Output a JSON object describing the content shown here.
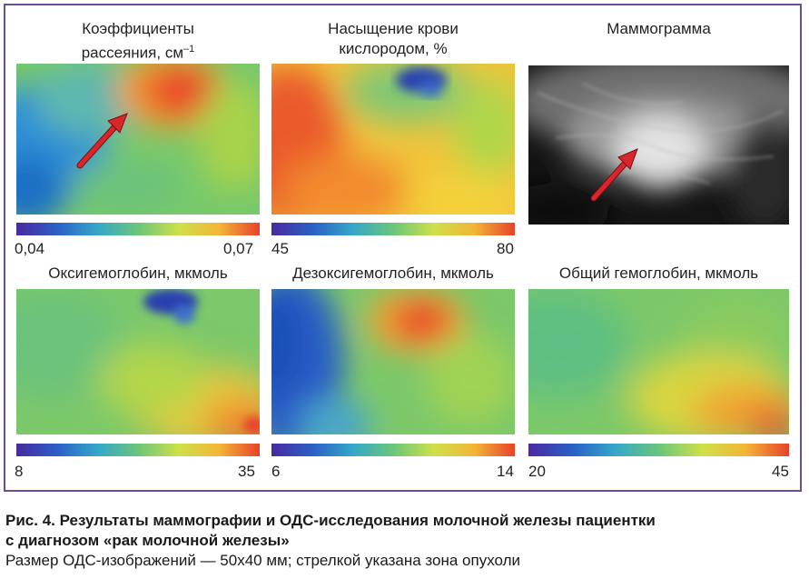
{
  "panels": {
    "scattering": {
      "title_line1": "Коэффициенты",
      "title_line2": "рассеяния, см",
      "title_sup": "–1",
      "min": "0,04",
      "max": "0,07"
    },
    "saturation": {
      "title_line1": "Насыщение крови",
      "title_line2": "кислородом, %",
      "min": "45",
      "max": "80"
    },
    "mammogram": {
      "title": "Маммограмма"
    },
    "oxyhemoglobin": {
      "title": "Оксигемоглобин, мкмоль",
      "min": "8",
      "max": "35"
    },
    "deoxyhemoglobin": {
      "title": "Дезоксигемоглобин, мкмоль",
      "min": "6",
      "max": "14"
    },
    "total_hemoglobin": {
      "title": "Общий гемоглобин, мкмоль",
      "min": "20",
      "max": "45"
    }
  },
  "caption": {
    "title_line1": "Рис. 4. Результаты маммографии и ОДС-исследования молочной железы пациентки",
    "title_line2": "с диагнозом «рак молочной железы»",
    "note": "Размер ОДС-изображений — 50х40 мм; стрелкой указана зона опухоли"
  },
  "colors": {
    "frame": "#6b4f8e",
    "arrow": "#d9262c"
  }
}
